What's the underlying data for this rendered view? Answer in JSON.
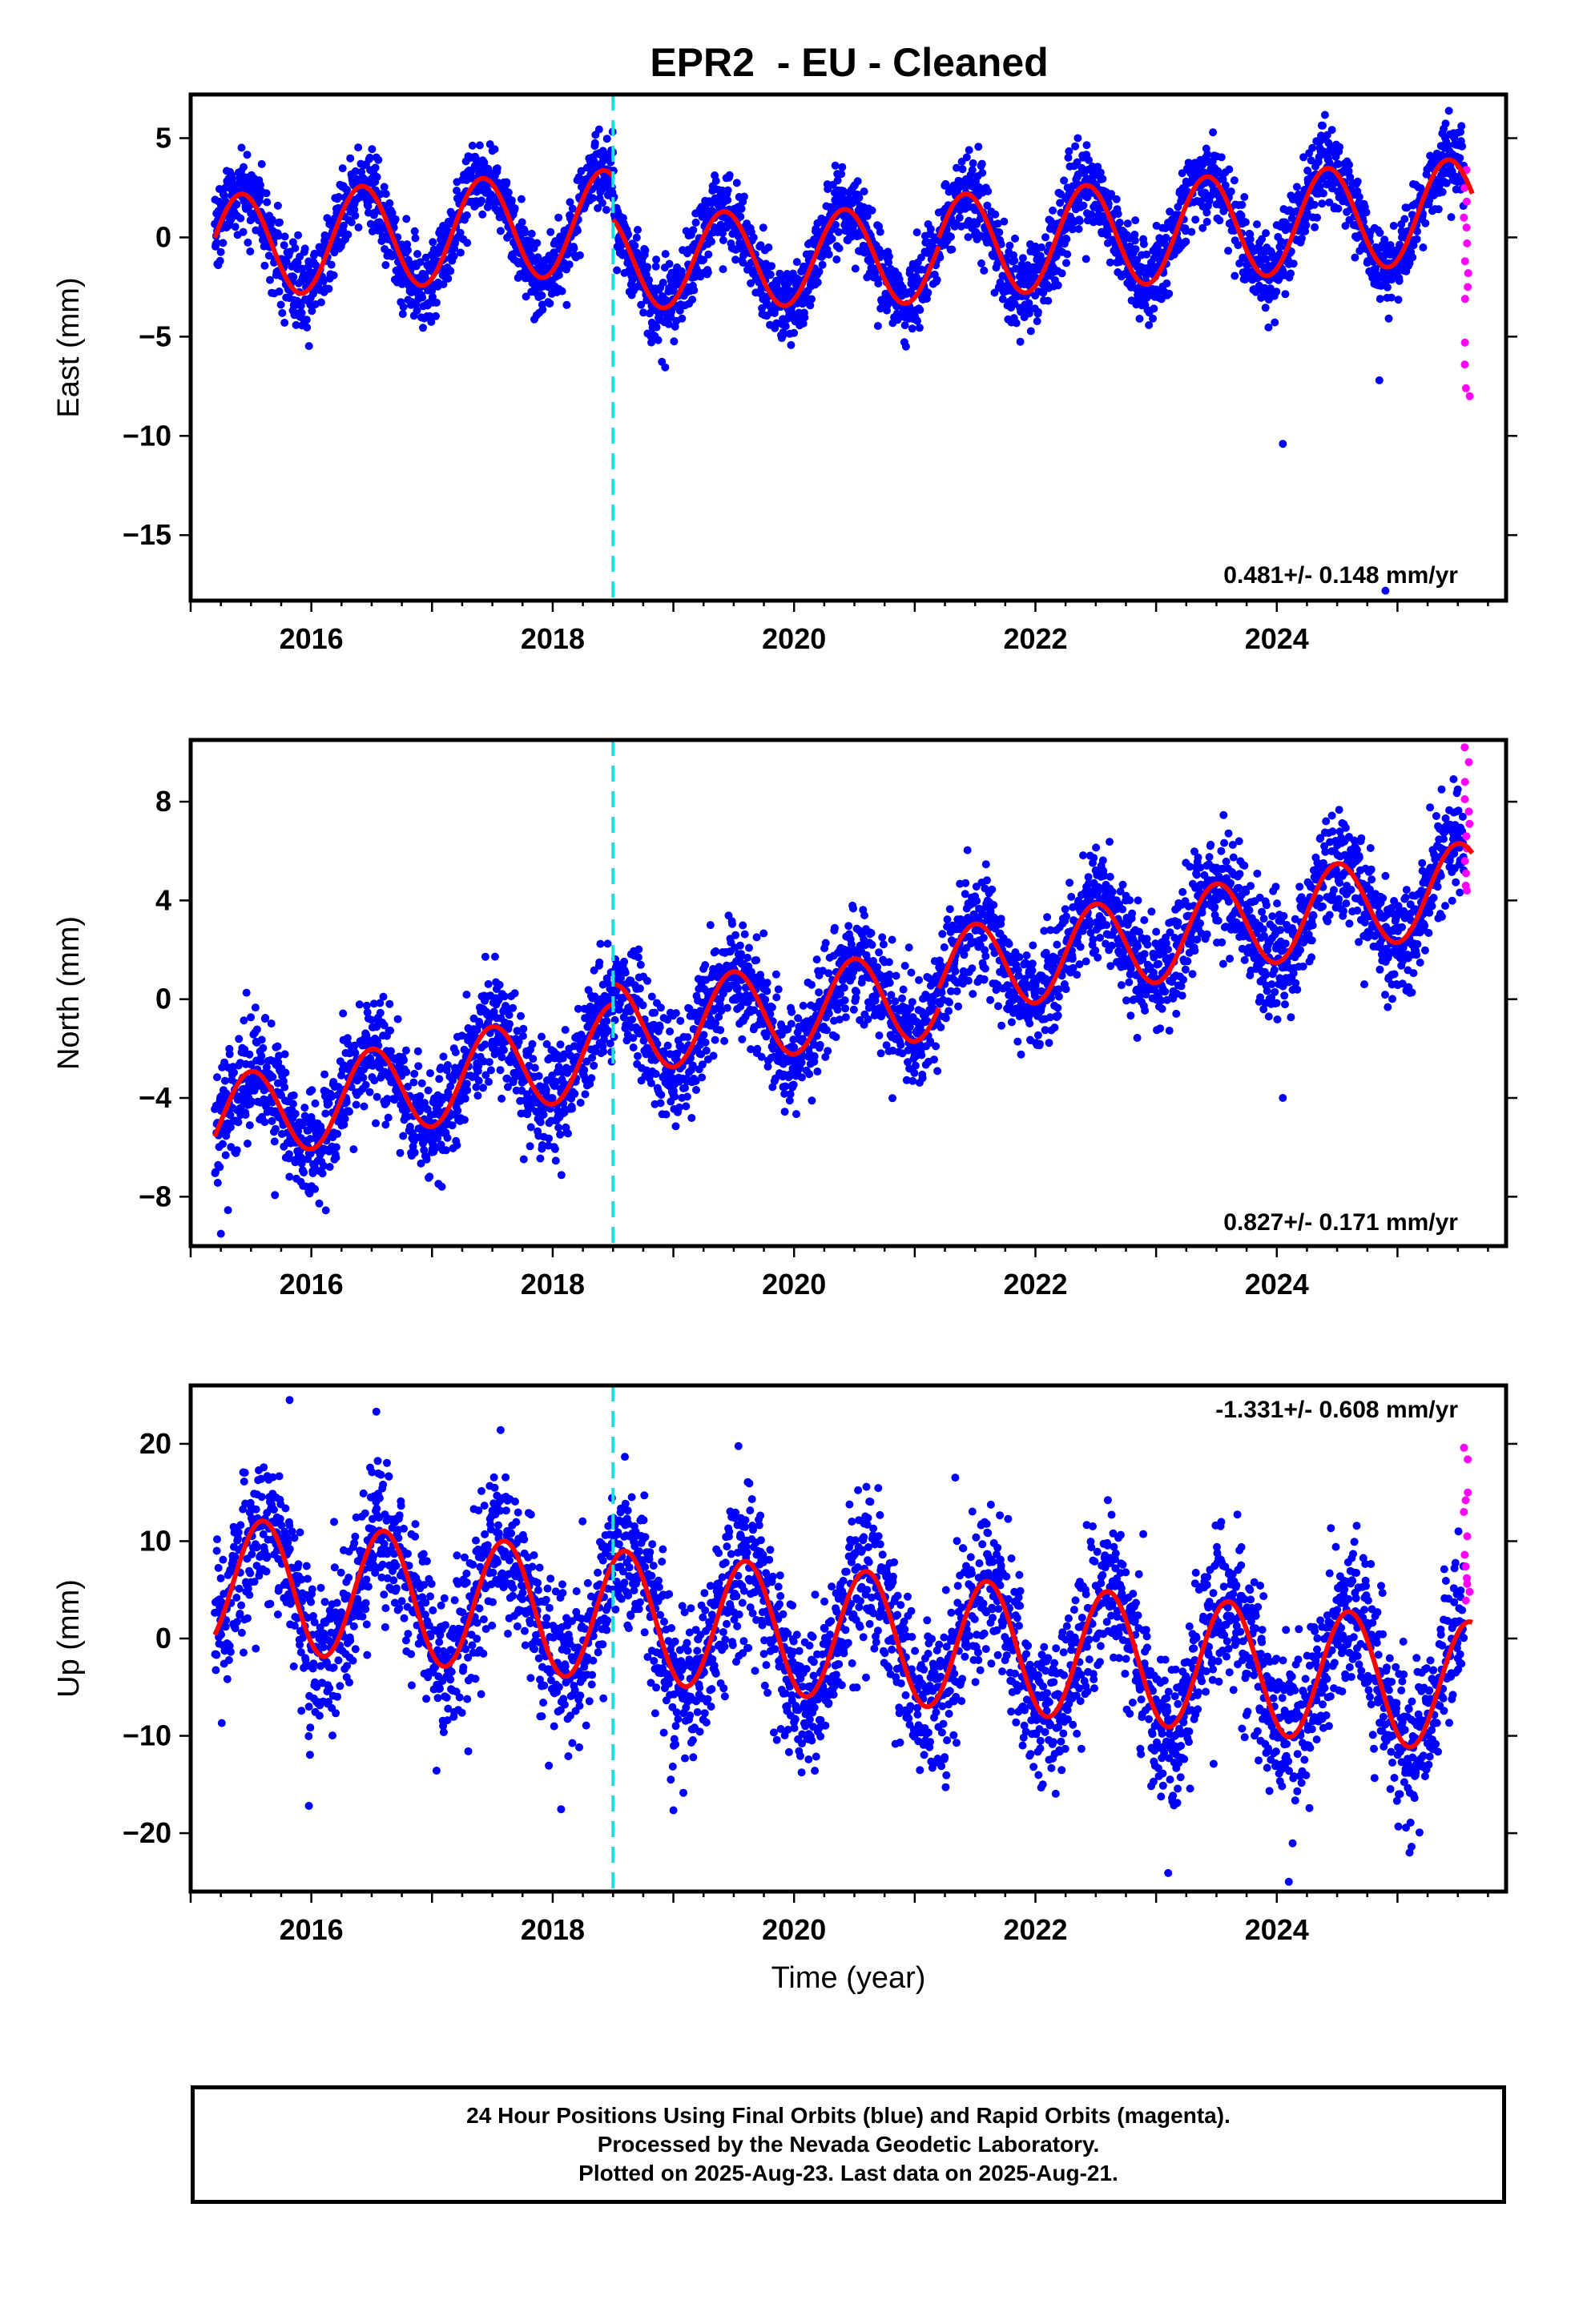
{
  "title": "EPR2  - EU - Cleaned",
  "xlabel": "Time (year)",
  "colors": {
    "final": "#0000ff",
    "rapid": "#ff00ff",
    "model": "#ff0000",
    "event": "#22dddd",
    "frame": "#000000"
  },
  "footer": {
    "line1": "24 Hour Positions Using Final Orbits (blue) and Rapid Orbits (magenta).",
    "line2": "Processed by the Nevada Geodetic Laboratory.",
    "line3": "Plotted on 2025-Aug-23. Last data on 2025-Aug-21."
  },
  "chart_data": [
    {
      "type": "scatter",
      "component": "east",
      "ylabel": "East (mm)",
      "rate_label": "0.481+/- 0.148 mm/yr",
      "xlim": [
        2015,
        2025.9
      ],
      "ylim": [
        -18.3,
        7.2
      ],
      "xticks": [
        2016,
        2018,
        2020,
        2022,
        2024
      ],
      "yticks": [
        5,
        0,
        -5,
        -10,
        -15
      ],
      "event_line_x": 2018.5,
      "data_start": 2015.2,
      "data_end": 2025.6,
      "rapid_start": 2025.55,
      "model": {
        "segments": [
          {
            "x_start": 2015.2,
            "x_end": 2018.5,
            "trend_at_start": -0.5,
            "trend_at_end": 0.8,
            "amplitude": 2.6,
            "peak_fraction": 0.42
          },
          {
            "x_start": 2018.5,
            "x_end": 2021.2,
            "trend_at_start": -1.2,
            "trend_at_end": -0.9,
            "amplitude": 2.4,
            "peak_fraction": 0.42
          },
          {
            "x_start": 2021.2,
            "x_end": 2025.62,
            "trend_at_start": -0.5,
            "trend_at_end": 1.4,
            "amplitude": 2.6,
            "peak_fraction": 0.42
          }
        ]
      },
      "scatter_sigma": 1.0,
      "rapid_values": [
        3.4,
        2.5,
        1.8,
        1.0,
        0.5,
        -0.3,
        -1.2,
        -1.8,
        -2.5,
        -3.1,
        -5.3,
        -6.4,
        -7.6,
        -8.0
      ],
      "outliers": [
        {
          "x": 2024.05,
          "y": -10.4
        },
        {
          "x": 2024.85,
          "y": -7.2
        },
        {
          "x": 2024.9,
          "y": -17.8
        }
      ]
    },
    {
      "type": "scatter",
      "component": "north",
      "ylabel": "North (mm)",
      "rate_label": "0.827+/- 0.171 mm/yr",
      "xlim": [
        2015,
        2025.9
      ],
      "ylim": [
        -10.0,
        10.5
      ],
      "xticks": [
        2016,
        2018,
        2020,
        2022,
        2024
      ],
      "yticks": [
        8,
        4,
        0,
        -4,
        -8
      ],
      "event_line_x": 2018.5,
      "data_start": 2015.2,
      "data_end": 2025.6,
      "rapid_start": 2025.55,
      "model": {
        "segments": [
          {
            "x_start": 2015.2,
            "x_end": 2018.5,
            "trend_at_start": -5.0,
            "trend_at_end": -2.0,
            "amplitude": 1.8,
            "peak_fraction": 0.5
          },
          {
            "x_start": 2018.5,
            "x_end": 2021.2,
            "trend_at_start": -1.2,
            "trend_at_end": 0.2,
            "amplitude": 1.8,
            "peak_fraction": 0.5
          },
          {
            "x_start": 2021.2,
            "x_end": 2025.62,
            "trend_at_start": 1.0,
            "trend_at_end": 4.6,
            "amplitude": 1.8,
            "peak_fraction": 0.5
          }
        ]
      },
      "scatter_sigma": 1.1,
      "rapid_values": [
        10.2,
        9.6,
        8.8,
        8.1,
        7.6,
        7.1,
        6.6,
        6.1,
        5.6,
        5.1,
        4.6,
        4.4
      ],
      "outliers": [
        {
          "x": 2024.05,
          "y": -4.0
        },
        {
          "x": 2015.25,
          "y": -9.5
        }
      ]
    },
    {
      "type": "scatter",
      "component": "up",
      "ylabel": "Up (mm)",
      "rate_label": "-1.331+/- 0.608 mm/yr",
      "xlim": [
        2015,
        2025.9
      ],
      "ylim": [
        -26,
        26
      ],
      "xticks": [
        2016,
        2018,
        2020,
        2022,
        2024
      ],
      "yticks": [
        20,
        10,
        0,
        -10,
        -20
      ],
      "event_line_x": 2018.5,
      "data_start": 2015.2,
      "data_end": 2025.6,
      "rapid_start": 2025.55,
      "model": {
        "segments": [
          {
            "x_start": 2015.2,
            "x_end": 2025.62,
            "trend_at_start": 5.8,
            "trend_at_end": -5.0,
            "amplitude": 6.7,
            "peak_fraction": 0.6
          }
        ]
      },
      "scatter_sigma": 4.0,
      "rapid_values": [
        19.6,
        18.4,
        15.0,
        14.2,
        13.0,
        10.5,
        8.6,
        7.4,
        6.2,
        5.6,
        4.8,
        3.9
      ],
      "outliers": [
        {
          "x": 2015.82,
          "y": 24.5
        },
        {
          "x": 2015.98,
          "y": -17.2
        },
        {
          "x": 2023.1,
          "y": -24.1
        },
        {
          "x": 2024.1,
          "y": -25.0
        },
        {
          "x": 2025.1,
          "y": -22.0
        }
      ]
    }
  ]
}
